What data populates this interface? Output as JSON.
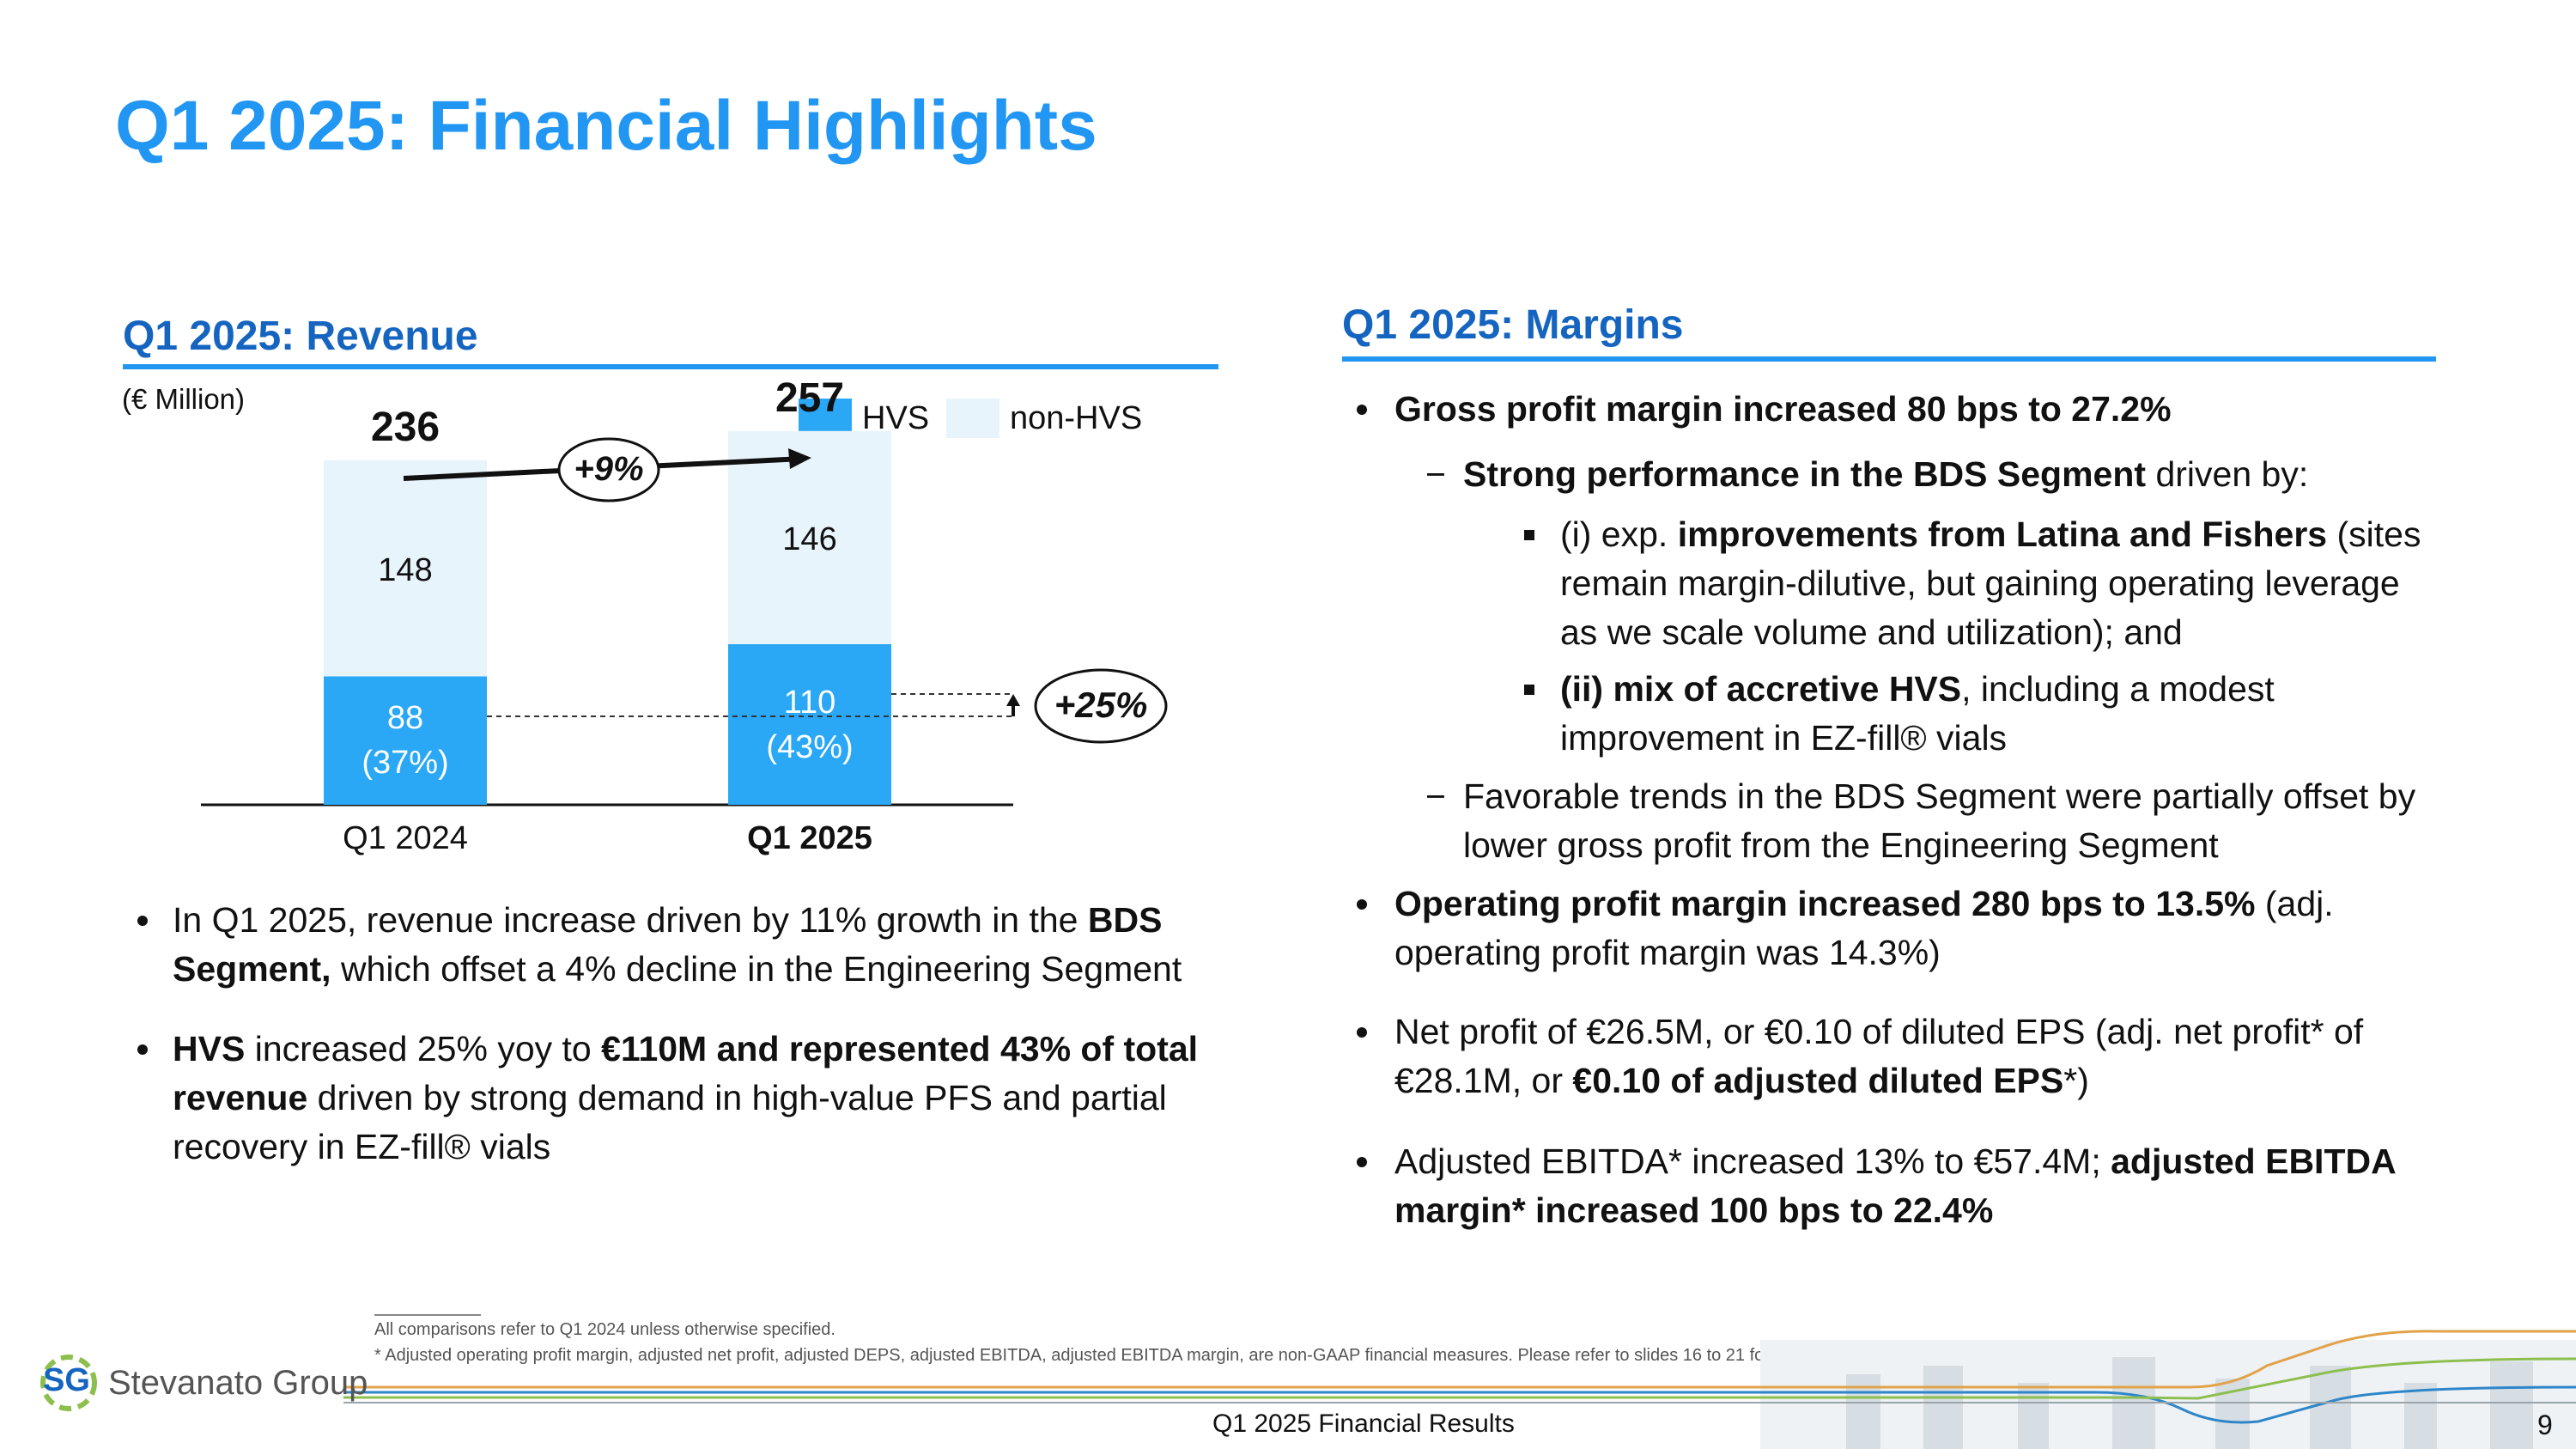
{
  "slide": {
    "title": "Q1 2025: Financial Highlights",
    "page_number": "9",
    "footer": "Q1 2025 Financial Results",
    "logo_mark": "SG",
    "logo_text": "Stevanato Group"
  },
  "revenue": {
    "heading": "Q1 2025: Revenue",
    "unit": "(€ Million)",
    "growth_label": "+9%",
    "hvs_growth_label": "+25%",
    "bullets": [
      {
        "parts": [
          {
            "t": "In Q1 2025, revenue increase driven by 11% growth in the ",
            "b": false
          },
          {
            "t": "BDS Segment,",
            "b": true
          },
          {
            "t": " which offset a 4% decline in the Engineering Segment",
            "b": false
          }
        ]
      },
      {
        "parts": [
          {
            "t": "HVS",
            "b": true
          },
          {
            "t": " increased 25% yoy to ",
            "b": false
          },
          {
            "t": "€110M and represented 43% of total revenue",
            "b": true
          },
          {
            "t": " driven by strong demand in high-value PFS and partial recovery in EZ-fill® vials",
            "b": false
          }
        ]
      }
    ]
  },
  "chart_data": {
    "type": "bar",
    "stacked": true,
    "categories": [
      "Q1 2024",
      "Q1 2025"
    ],
    "series": [
      {
        "name": "HVS",
        "values": [
          88,
          110
        ],
        "labels": [
          "88\n(37%)",
          "110\n(43%)"
        ],
        "color": "#2aa8f5"
      },
      {
        "name": "non-HVS",
        "values": [
          148,
          146
        ],
        "labels": [
          "148",
          "146"
        ],
        "color": "#e8f4fc"
      }
    ],
    "totals": [
      "236",
      "257"
    ],
    "legend_position": "top-right",
    "grid": false
  },
  "margins": {
    "heading": "Q1 2025: Margins",
    "items": [
      {
        "level": 1,
        "parts": [
          {
            "t": "Gross profit margin increased 80 bps to 27.2%",
            "b": true
          }
        ]
      },
      {
        "level": 2,
        "parts": [
          {
            "t": "Strong performance in the BDS Segment",
            "b": true
          },
          {
            "t": " driven by:",
            "b": false
          }
        ]
      },
      {
        "level": 3,
        "parts": [
          {
            "t": "(i) exp. ",
            "b": false
          },
          {
            "t": "improvements from Latina and Fishers",
            "b": true
          },
          {
            "t": " (sites remain margin-dilutive, but gaining operating leverage as we scale volume and utilization); and",
            "b": false
          }
        ]
      },
      {
        "level": 3,
        "parts": [
          {
            "t": "(ii) mix of accretive HVS",
            "b": true
          },
          {
            "t": ", including a modest improvement in EZ-fill® vials",
            "b": false
          }
        ]
      },
      {
        "level": 2,
        "parts": [
          {
            "t": "Favorable trends in the BDS Segment were partially offset by lower gross profit from the Engineering Segment",
            "b": false
          }
        ]
      },
      {
        "level": 1,
        "parts": [
          {
            "t": "Operating profit margin increased 280 bps to 13.5%",
            "b": true
          },
          {
            "t": " (adj. operating profit margin was 14.3%)",
            "b": false
          }
        ]
      },
      {
        "level": 1,
        "parts": [
          {
            "t": "Net profit of €26.5M, or €0.10 of diluted EPS (adj. net profit* of €28.1M, or ",
            "b": false
          },
          {
            "t": "€0.10 of adjusted diluted EPS",
            "b": true
          },
          {
            "t": "*)",
            "b": false
          }
        ]
      },
      {
        "level": 1,
        "parts": [
          {
            "t": "Adjusted EBITDA* increased 13% to €57.4M; ",
            "b": false
          },
          {
            "t": "adjusted EBITDA margin* increased 100 bps to 22.4%",
            "b": true
          }
        ]
      }
    ]
  },
  "footnotes": [
    "All comparisons refer to Q1 2024 unless otherwise specified.",
    "* Adjusted operating profit margin, adjusted net profit, adjusted DEPS, adjusted EBITDA, adjusted EBITDA margin, are non-GAAP financial measures. Please refer to slides 16 to 21 for a reconciliation of non-GAAP measures"
  ],
  "colors": {
    "title": "#2196f3",
    "heading": "#1565c0",
    "hvs": "#2aa8f5",
    "non_hvs": "#e8f4fc"
  }
}
